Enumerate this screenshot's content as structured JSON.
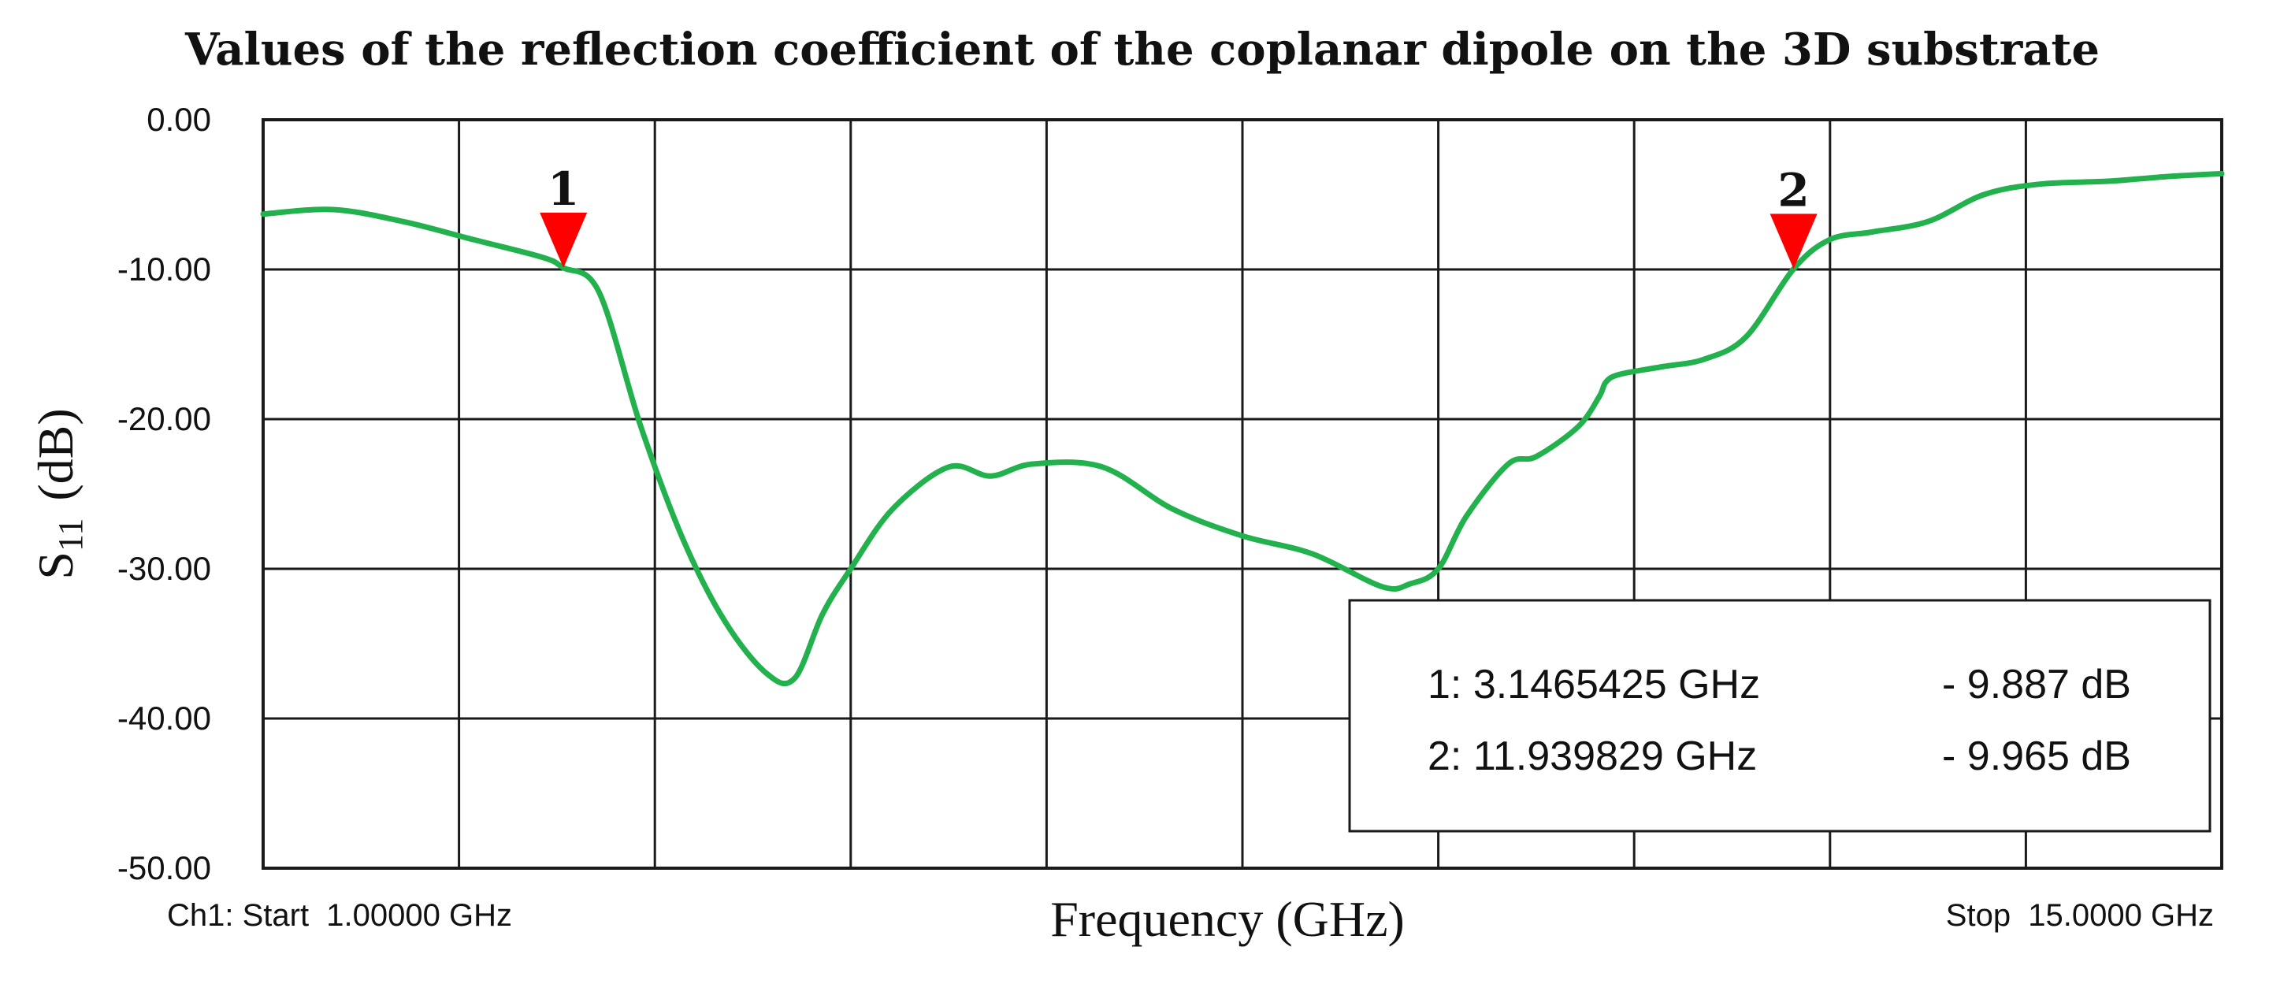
{
  "chart_data": {
    "type": "line",
    "title": "Values of the reflection coefficient of the coplanar dipole on the 3D substrate",
    "xlabel": "Frequency (GHz)",
    "ylabel": {
      "base": "S",
      "sub": "11",
      "unit": "(dB)"
    },
    "xlim": [
      1.0,
      15.0
    ],
    "ylim": [
      -50,
      0
    ],
    "yticks": [
      "0.00",
      "-10.00",
      "-20.00",
      "-30.00",
      "-40.00",
      "-50.00"
    ],
    "ytick_values": [
      0,
      -10,
      -20,
      -30,
      -40,
      -50
    ],
    "x_divisions": 10,
    "grid": true,
    "line_color": "#22b14c",
    "marker_color": "#ff0000",
    "start_label": "Ch1: Start  1.00000 GHz",
    "stop_label": "Stop  15.0000 GHz",
    "series": [
      {
        "x": [
          1.0,
          1.5,
          2.0,
          2.5,
          3.0,
          3.147,
          3.4,
          3.7,
          4.0,
          4.3,
          4.6,
          4.8,
          5.0,
          5.2,
          5.5,
          5.9,
          6.2,
          6.5,
          7.0,
          7.5,
          8.0,
          8.5,
          9.0,
          9.2,
          9.4,
          9.6,
          9.9,
          10.1,
          10.4,
          10.55,
          10.6,
          10.7,
          11.0,
          11.3,
          11.6,
          11.94,
          12.2,
          12.5,
          12.9,
          13.3,
          13.7,
          14.2,
          14.6,
          15.0
        ],
        "y": [
          -6.3,
          -6.0,
          -6.8,
          -8.0,
          -9.2,
          -9.887,
          -11.5,
          -20.5,
          -28.0,
          -33.5,
          -37.0,
          -37.3,
          -33.0,
          -30.0,
          -26.0,
          -23.2,
          -23.8,
          -23.0,
          -23.2,
          -26.0,
          -27.8,
          -29.0,
          -31.2,
          -31.0,
          -30.0,
          -26.5,
          -23.0,
          -22.5,
          -20.5,
          -18.5,
          -17.5,
          -17.0,
          -16.5,
          -16.0,
          -14.5,
          -9.965,
          -8.0,
          -7.5,
          -6.8,
          -5.0,
          -4.3,
          -4.1,
          -3.8,
          -3.6
        ]
      }
    ],
    "markers": [
      {
        "label": "1",
        "x": 3.1465425,
        "y": -9.887
      },
      {
        "label": "2",
        "x": 11.939829,
        "y": -9.965
      }
    ],
    "readout": [
      {
        "freq": "1: 3.1465425 GHz",
        "value": "- 9.887 dB"
      },
      {
        "freq": "2: 11.939829 GHz",
        "value": "- 9.965 dB"
      }
    ]
  }
}
